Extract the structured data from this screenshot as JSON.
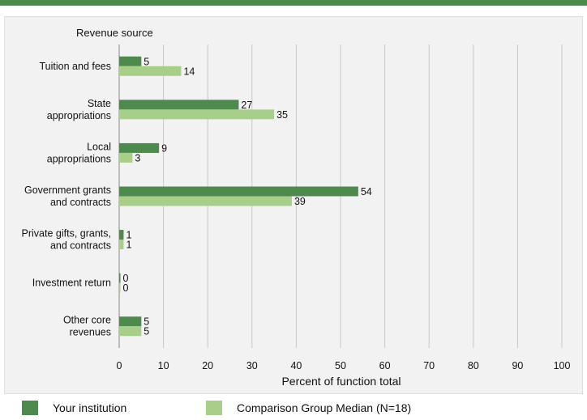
{
  "chart_data": {
    "type": "bar",
    "orientation": "horizontal",
    "title": "",
    "ylabel": "Revenue source",
    "xlabel": "Percent of function total",
    "xlim": [
      0,
      100
    ],
    "xticks": [
      "0",
      "10",
      "20",
      "30",
      "40",
      "50",
      "60",
      "70",
      "80",
      "90",
      "100"
    ],
    "grid": true,
    "legend_position": "bottom",
    "categories": [
      [
        "Tuition and fees"
      ],
      [
        "State",
        "appropriations"
      ],
      [
        "Local",
        "appropriations"
      ],
      [
        "Government grants",
        "and contracts"
      ],
      [
        "Private gifts, grants,",
        "and contracts"
      ],
      [
        "Investment return"
      ],
      [
        "Other core",
        "revenues"
      ]
    ],
    "series": [
      {
        "name": "Your institution",
        "color": "#4e8a4e",
        "values": [
          5,
          27,
          9,
          54,
          1,
          0,
          5
        ],
        "labels": [
          "5",
          "27",
          "9",
          "54",
          "1",
          "0",
          "5"
        ]
      },
      {
        "name": "Comparison Group Median (N=18)",
        "color": "#a8cf8a",
        "values": [
          14,
          35,
          3,
          39,
          1,
          0,
          5
        ],
        "labels": [
          "14",
          "35",
          "3",
          "39",
          "1",
          "0",
          "5"
        ]
      }
    ]
  }
}
